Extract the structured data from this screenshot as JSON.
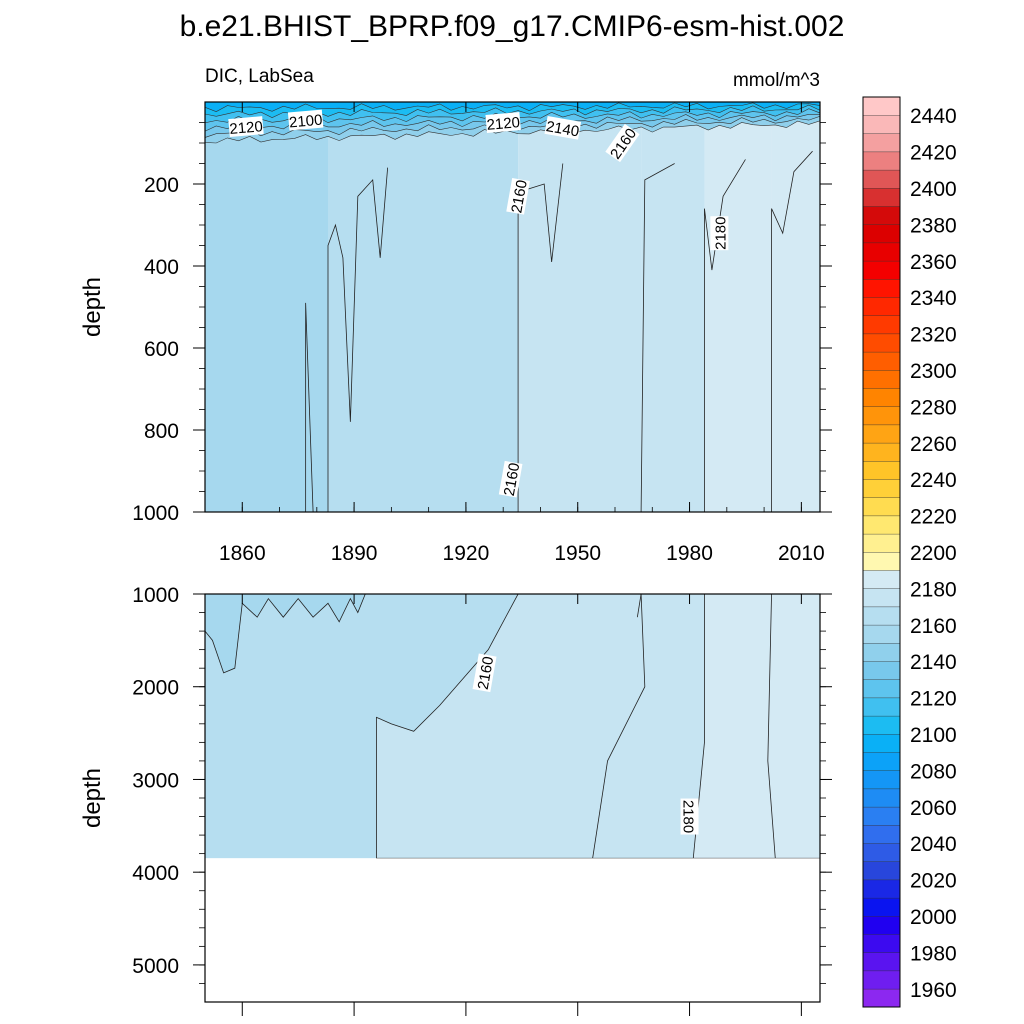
{
  "title": "b.e21.BHIST_BPRP.f09_g17.CMIP6-esm-hist.002",
  "chart_data": [
    {
      "type": "contour",
      "panel": "upper",
      "left_label": "DIC, LabSea",
      "right_label": "mmol/m^3",
      "ylabel": "depth",
      "y_reversed": true,
      "xlim": [
        1850,
        2015
      ],
      "ylim": [
        1000,
        0
      ],
      "x_ticks": [
        1860,
        1890,
        1920,
        1950,
        1980,
        2010
      ],
      "y_ticks": [
        200,
        400,
        600,
        800,
        1000
      ],
      "y_tick_labels": [
        "200",
        "400",
        "600",
        "800",
        "1000"
      ],
      "contour_labels": [
        {
          "text": "2120",
          "year": 1861,
          "depth": 60
        },
        {
          "text": "2100",
          "year": 1877,
          "depth": 44
        },
        {
          "text": "2120",
          "year": 1930,
          "depth": 50
        },
        {
          "text": "2140",
          "year": 1946,
          "depth": 63
        },
        {
          "text": "2160",
          "year": 1962,
          "depth": 100
        },
        {
          "text": "2160",
          "year": 1934,
          "depth": 230
        },
        {
          "text": "2180",
          "year": 1988,
          "depth": 320
        },
        {
          "text": "2160",
          "year": 1932,
          "depth": 920
        }
      ],
      "columns": [
        {
          "x0": 1850,
          "x1": 1883,
          "dic": 2150
        },
        {
          "x0": 1883,
          "x1": 1934,
          "dic": 2162
        },
        {
          "x0": 1934,
          "x1": 1967,
          "dic": 2170
        },
        {
          "x0": 1967,
          "x1": 1984,
          "dic": 2175
        },
        {
          "x0": 1984,
          "x1": 2002,
          "dic": 2183
        },
        {
          "x0": 2002,
          "x1": 2015,
          "dic": 2186
        }
      ]
    },
    {
      "type": "contour",
      "panel": "lower",
      "ylabel": "depth",
      "y_reversed": true,
      "xlim": [
        1850,
        2015
      ],
      "ylim": [
        5400,
        1000
      ],
      "data_bottom_depth": 3850,
      "x_ticks": [
        1860,
        1890,
        1920,
        1950,
        1980,
        2010
      ],
      "y_ticks": [
        1000,
        2000,
        3000,
        4000,
        5000
      ],
      "y_tick_labels": [
        "1000",
        "2000",
        "3000",
        "4000",
        "5000"
      ],
      "contour_labels": [
        {
          "text": "2160",
          "year": 1925,
          "depth": 1850
        },
        {
          "text": "2180",
          "year": 1980,
          "depth": 3400
        }
      ]
    }
  ],
  "colorbar": {
    "levels": [
      1950,
      1960,
      1970,
      1980,
      1990,
      2000,
      2010,
      2020,
      2030,
      2040,
      2050,
      2060,
      2070,
      2080,
      2090,
      2100,
      2110,
      2120,
      2130,
      2140,
      2150,
      2160,
      2170,
      2180,
      2190,
      2200,
      2210,
      2220,
      2230,
      2240,
      2250,
      2260,
      2270,
      2280,
      2290,
      2300,
      2310,
      2320,
      2330,
      2340,
      2350,
      2360,
      2370,
      2380,
      2390,
      2400,
      2410,
      2420,
      2430,
      2440,
      2450
    ],
    "labels": [
      "2440",
      "2420",
      "2400",
      "2380",
      "2360",
      "2340",
      "2320",
      "2300",
      "2280",
      "2260",
      "2240",
      "2220",
      "2200",
      "2180",
      "2160",
      "2140",
      "2120",
      "2100",
      "2080",
      "2060",
      "2040",
      "2020",
      "2000",
      "1980",
      "1960"
    ],
    "colors": [
      "#8c28f0",
      "#6f1ef0",
      "#5a14f0",
      "#3c0af0",
      "#2000f0",
      "#0a14f0",
      "#1a28e6",
      "#2846dc",
      "#2e5be6",
      "#306eee",
      "#2a7ff2",
      "#1e8cf4",
      "#1496f6",
      "#0ca2f8",
      "#0ab0f6",
      "#1cbcf2",
      "#40c0f0",
      "#5ec4ee",
      "#78c8ec",
      "#90d0ec",
      "#a6d8ee",
      "#b6def0",
      "#c6e4f2",
      "#d4eaf4",
      "#fff8b0",
      "#fff090",
      "#ffe870",
      "#ffdc50",
      "#ffd038",
      "#ffc428",
      "#ffb41e",
      "#ffa414",
      "#ff940a",
      "#ff8400",
      "#ff7000",
      "#ff5e00",
      "#ff4c00",
      "#ff3a00",
      "#ff2800",
      "#ff1400",
      "#f40000",
      "#e80000",
      "#dc0000",
      "#d40a0a",
      "#d83030",
      "#e05656",
      "#ec8080",
      "#f4a0a0",
      "#fab8b8",
      "#ffc8c8"
    ]
  }
}
